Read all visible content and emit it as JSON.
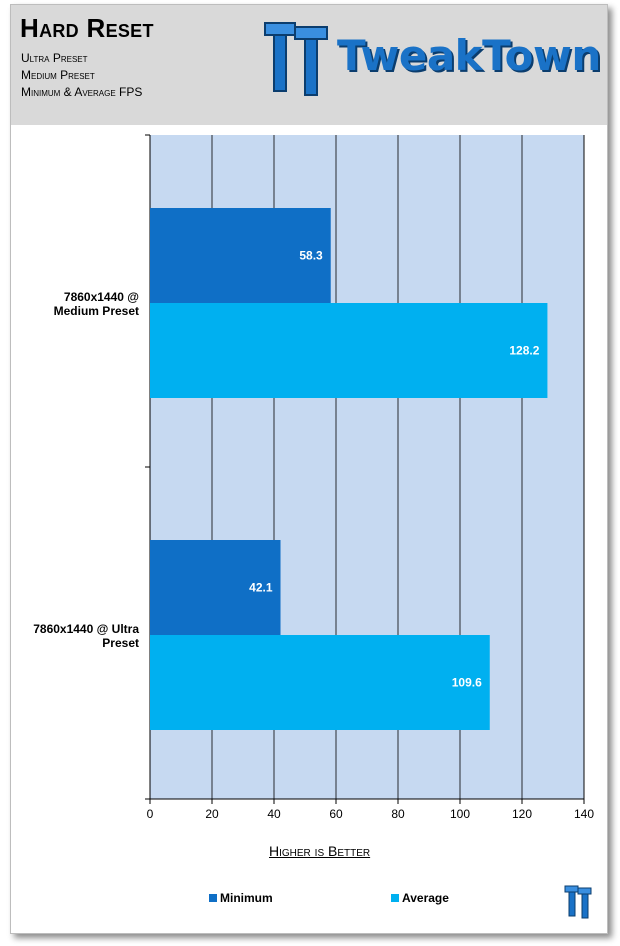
{
  "header": {
    "title": "Hard Reset",
    "subtitles": [
      "Ultra Preset",
      "Medium Preset",
      "Minimum & Average FPS"
    ],
    "logo_text": "TweakTown"
  },
  "chart_data": {
    "type": "bar",
    "orientation": "horizontal",
    "categories": [
      "7860x1440 @ Medium Preset",
      "7860x1440 @ Ultra Preset"
    ],
    "series": [
      {
        "name": "Minimum",
        "values": [
          58.3,
          42.1
        ],
        "color": "#0f6fc6"
      },
      {
        "name": "Average",
        "values": [
          128.2,
          109.6
        ],
        "color": "#00b0f0"
      }
    ],
    "xlim": [
      0,
      140
    ],
    "x_ticks": [
      0,
      20,
      40,
      60,
      80,
      100,
      120,
      140
    ],
    "xlabel": "Higher is Better",
    "grid": true,
    "legend_position": "bottom",
    "plot_background": "#c6d9f1"
  },
  "category_labels": [
    [
      "7860x1440 @",
      "Medium Preset"
    ],
    [
      "7860x1440 @ Ultra",
      "Preset"
    ]
  ]
}
